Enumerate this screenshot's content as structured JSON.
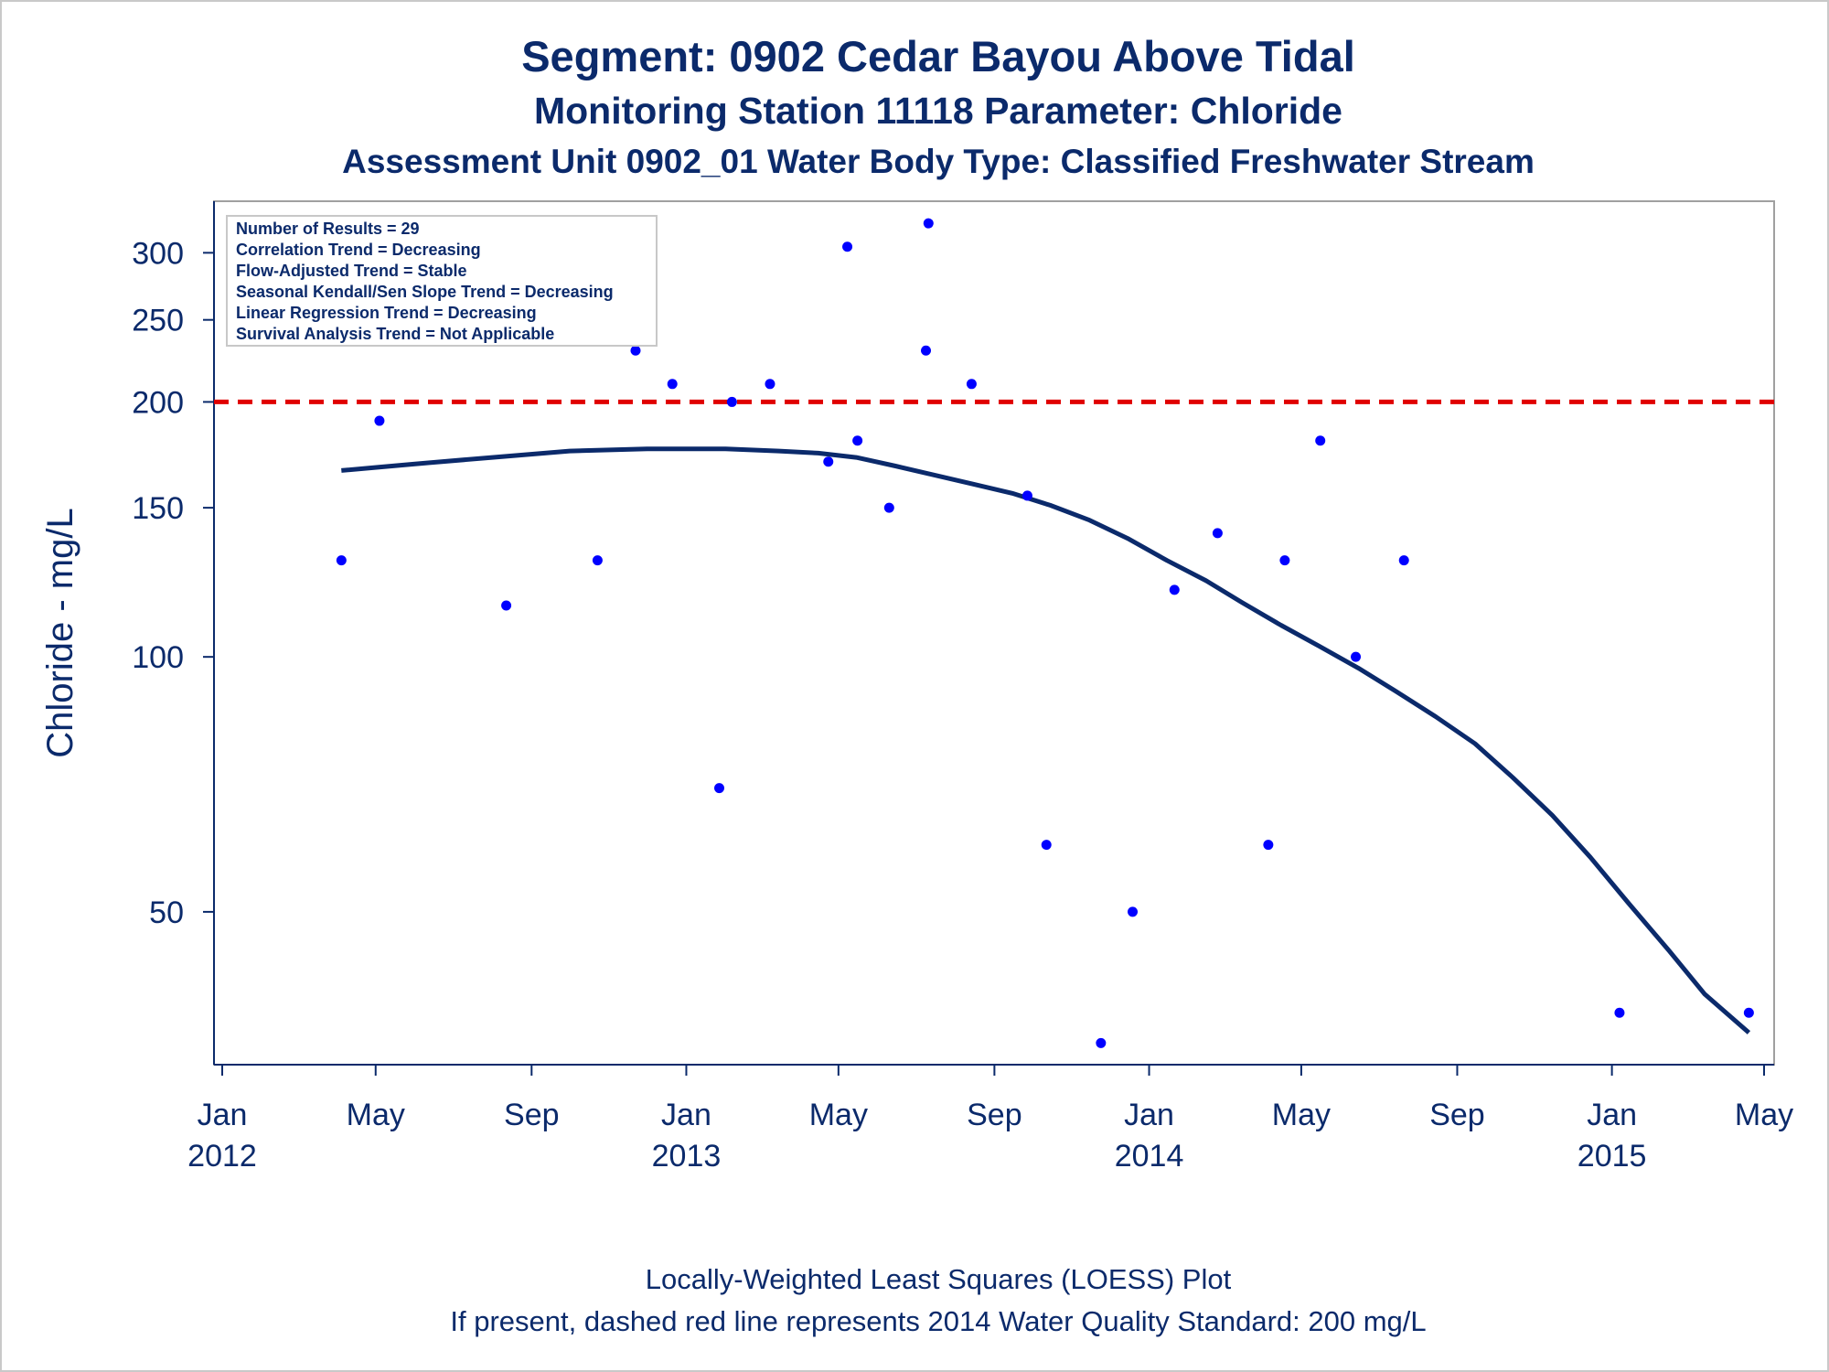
{
  "title": "Segment: 0902  Cedar Bayou Above Tidal",
  "subtitle1": "Monitoring Station 11118 Parameter: Chloride",
  "subtitle2": "Assessment Unit 0902_01   Water Body Type: Classified Freshwater Stream",
  "footnote1": "Locally-Weighted Least Squares (LOESS) Plot",
  "footnote2": "If present, dashed red line represents 2014 Water Quality Standard: 200    mg/L",
  "stats": [
    "Number of Results = 29",
    "Correlation Trend = Decreasing",
    "Flow-Adjusted Trend = Stable",
    "Seasonal Kendall/Sen Slope Trend = Decreasing",
    "Linear Regression Trend = Decreasing",
    "Survival Analysis Trend = Not Applicable"
  ],
  "chart_data": {
    "type": "scatter",
    "ylabel": "Chloride - mg/L",
    "y_scale": "log",
    "ylim": [
      34,
      335
    ],
    "y_ticks": [
      50,
      100,
      150,
      200,
      250,
      300
    ],
    "xlim": [
      "2012-01-01",
      "2015-05-01"
    ],
    "x_ticks": [
      {
        "date": "2012-01-01",
        "month": "Jan",
        "year": "2012"
      },
      {
        "date": "2012-05-01",
        "month": "May",
        "year": ""
      },
      {
        "date": "2012-09-01",
        "month": "Sep",
        "year": ""
      },
      {
        "date": "2013-01-01",
        "month": "Jan",
        "year": "2013"
      },
      {
        "date": "2013-05-01",
        "month": "May",
        "year": ""
      },
      {
        "date": "2013-09-01",
        "month": "Sep",
        "year": ""
      },
      {
        "date": "2014-01-01",
        "month": "Jan",
        "year": "2014"
      },
      {
        "date": "2014-05-01",
        "month": "May",
        "year": ""
      },
      {
        "date": "2014-09-01",
        "month": "Sep",
        "year": ""
      },
      {
        "date": "2015-01-01",
        "month": "Jan",
        "year": "2015"
      },
      {
        "date": "2015-05-01",
        "month": "May",
        "year": ""
      }
    ],
    "points": [
      {
        "x": "2012-04-04",
        "y": 130
      },
      {
        "x": "2012-05-04",
        "y": 190
      },
      {
        "x": "2012-08-12",
        "y": 115
      },
      {
        "x": "2012-10-23",
        "y": 130
      },
      {
        "x": "2012-11-22",
        "y": 230
      },
      {
        "x": "2012-12-21",
        "y": 210
      },
      {
        "x": "2013-01-27",
        "y": 70
      },
      {
        "x": "2013-02-06",
        "y": 200
      },
      {
        "x": "2013-03-08",
        "y": 210
      },
      {
        "x": "2013-04-23",
        "y": 170
      },
      {
        "x": "2013-05-08",
        "y": 305
      },
      {
        "x": "2013-05-16",
        "y": 180
      },
      {
        "x": "2013-06-10",
        "y": 150
      },
      {
        "x": "2013-07-09",
        "y": 230
      },
      {
        "x": "2013-07-11",
        "y": 325
      },
      {
        "x": "2013-08-14",
        "y": 210
      },
      {
        "x": "2013-09-27",
        "y": 155
      },
      {
        "x": "2013-10-12",
        "y": 60
      },
      {
        "x": "2013-11-24",
        "y": 35
      },
      {
        "x": "2013-12-19",
        "y": 50
      },
      {
        "x": "2014-01-21",
        "y": 120
      },
      {
        "x": "2014-02-24",
        "y": 140
      },
      {
        "x": "2014-04-05",
        "y": 60
      },
      {
        "x": "2014-04-18",
        "y": 130
      },
      {
        "x": "2014-05-16",
        "y": 180
      },
      {
        "x": "2014-06-13",
        "y": 100
      },
      {
        "x": "2014-07-21",
        "y": 130
      },
      {
        "x": "2015-01-07",
        "y": 38
      },
      {
        "x": "2015-04-19",
        "y": 38
      }
    ],
    "loess": [
      {
        "x": "2012-04-04",
        "y": 166
      },
      {
        "x": "2012-06-01",
        "y": 169
      },
      {
        "x": "2012-08-01",
        "y": 172
      },
      {
        "x": "2012-10-01",
        "y": 175
      },
      {
        "x": "2012-12-01",
        "y": 176
      },
      {
        "x": "2013-02-01",
        "y": 176
      },
      {
        "x": "2013-03-15",
        "y": 175
      },
      {
        "x": "2013-04-15",
        "y": 174
      },
      {
        "x": "2013-05-15",
        "y": 172
      },
      {
        "x": "2013-06-15",
        "y": 168
      },
      {
        "x": "2013-07-15",
        "y": 164
      },
      {
        "x": "2013-08-15",
        "y": 160
      },
      {
        "x": "2013-09-15",
        "y": 156
      },
      {
        "x": "2013-10-15",
        "y": 151
      },
      {
        "x": "2013-11-15",
        "y": 145
      },
      {
        "x": "2013-12-15",
        "y": 138
      },
      {
        "x": "2014-01-15",
        "y": 130
      },
      {
        "x": "2014-02-15",
        "y": 123
      },
      {
        "x": "2014-03-15",
        "y": 116
      },
      {
        "x": "2014-04-15",
        "y": 109
      },
      {
        "x": "2014-05-15",
        "y": 103
      },
      {
        "x": "2014-06-15",
        "y": 97
      },
      {
        "x": "2014-07-15",
        "y": 91
      },
      {
        "x": "2014-08-15",
        "y": 85
      },
      {
        "x": "2014-09-15",
        "y": 79
      },
      {
        "x": "2014-10-15",
        "y": 72
      },
      {
        "x": "2014-11-15",
        "y": 65
      },
      {
        "x": "2014-12-15",
        "y": 58
      },
      {
        "x": "2015-01-15",
        "y": 51
      },
      {
        "x": "2015-02-15",
        "y": 45
      },
      {
        "x": "2015-03-15",
        "y": 40
      },
      {
        "x": "2015-04-19",
        "y": 36
      }
    ],
    "reference_line": {
      "y": 200,
      "style": "dashed",
      "color": "#e00000"
    },
    "colors": {
      "points": "#0000ff",
      "loess": "#0b2a6b",
      "axis": "#0b2a6b",
      "frame": "#a0a0a0"
    }
  }
}
